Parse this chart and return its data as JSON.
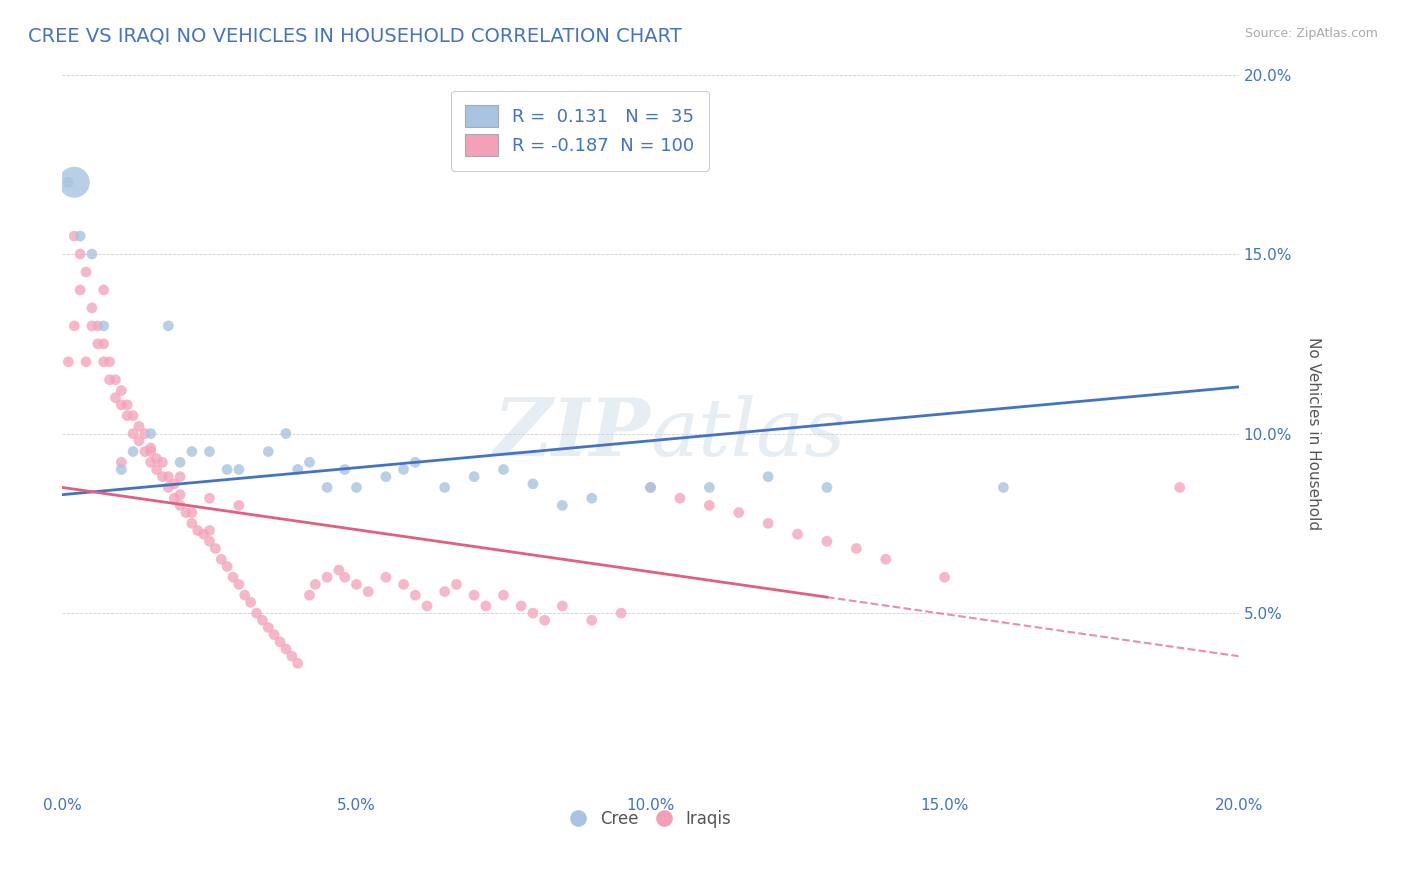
{
  "title": "CREE VS IRAQI NO VEHICLES IN HOUSEHOLD CORRELATION CHART",
  "source": "Source: ZipAtlas.com",
  "ylabel": "No Vehicles in Household",
  "xlim": [
    0.0,
    0.2
  ],
  "ylim": [
    0.0,
    0.2
  ],
  "xtick_labels": [
    "0.0%",
    "5.0%",
    "10.0%",
    "15.0%",
    "20.0%"
  ],
  "xtick_vals": [
    0.0,
    0.05,
    0.1,
    0.15,
    0.2
  ],
  "ytick_labels": [
    "",
    "5.0%",
    "10.0%",
    "15.0%",
    "20.0%"
  ],
  "ytick_vals": [
    0.0,
    0.05,
    0.1,
    0.15,
    0.2
  ],
  "cree_R": 0.131,
  "cree_N": 35,
  "iraqi_R": -0.187,
  "iraqi_N": 100,
  "cree_color": "#a8c4e0",
  "iraqi_color": "#f4a0b8",
  "cree_line_color": "#4472c4",
  "iraqi_line_color": "#e06080",
  "legend_labels": [
    "Cree",
    "Iraqis"
  ],
  "cree_line_x0": 0.0,
  "cree_line_y0": 0.083,
  "cree_line_x1": 0.2,
  "cree_line_y1": 0.113,
  "iraqi_line_x0": 0.0,
  "iraqi_line_y0": 0.085,
  "iraqi_line_x1": 0.2,
  "iraqi_line_y1": 0.038,
  "iraqi_line_solid_end": 0.13,
  "cree_scatter_x": [
    0.001,
    0.003,
    0.005,
    0.007,
    0.01,
    0.012,
    0.015,
    0.018,
    0.02,
    0.022,
    0.025,
    0.028,
    0.03,
    0.035,
    0.038,
    0.04,
    0.042,
    0.045,
    0.048,
    0.05,
    0.055,
    0.058,
    0.06,
    0.065,
    0.07,
    0.075,
    0.08,
    0.085,
    0.09,
    0.1,
    0.11,
    0.12,
    0.13,
    0.16,
    0.002
  ],
  "cree_scatter_y": [
    0.17,
    0.155,
    0.15,
    0.13,
    0.09,
    0.095,
    0.1,
    0.13,
    0.092,
    0.095,
    0.095,
    0.09,
    0.09,
    0.095,
    0.1,
    0.09,
    0.092,
    0.085,
    0.09,
    0.085,
    0.088,
    0.09,
    0.092,
    0.085,
    0.088,
    0.09,
    0.086,
    0.08,
    0.082,
    0.085,
    0.085,
    0.088,
    0.085,
    0.085,
    0.17
  ],
  "cree_scatter_size": [
    60,
    60,
    60,
    60,
    60,
    60,
    60,
    60,
    60,
    60,
    60,
    60,
    60,
    60,
    60,
    60,
    60,
    60,
    60,
    60,
    60,
    60,
    60,
    60,
    60,
    60,
    60,
    60,
    60,
    60,
    60,
    60,
    60,
    60,
    500
  ],
  "iraqi_scatter_x": [
    0.001,
    0.002,
    0.003,
    0.004,
    0.005,
    0.005,
    0.006,
    0.006,
    0.007,
    0.007,
    0.008,
    0.008,
    0.009,
    0.009,
    0.01,
    0.01,
    0.011,
    0.011,
    0.012,
    0.012,
    0.013,
    0.013,
    0.014,
    0.014,
    0.015,
    0.015,
    0.016,
    0.016,
    0.017,
    0.017,
    0.018,
    0.018,
    0.019,
    0.019,
    0.02,
    0.02,
    0.021,
    0.022,
    0.022,
    0.023,
    0.024,
    0.025,
    0.025,
    0.026,
    0.027,
    0.028,
    0.029,
    0.03,
    0.031,
    0.032,
    0.033,
    0.034,
    0.035,
    0.036,
    0.037,
    0.038,
    0.039,
    0.04,
    0.042,
    0.043,
    0.045,
    0.047,
    0.048,
    0.05,
    0.052,
    0.055,
    0.058,
    0.06,
    0.062,
    0.065,
    0.067,
    0.07,
    0.072,
    0.075,
    0.078,
    0.08,
    0.082,
    0.085,
    0.09,
    0.095,
    0.1,
    0.105,
    0.11,
    0.115,
    0.12,
    0.125,
    0.13,
    0.135,
    0.14,
    0.15,
    0.002,
    0.003,
    0.004,
    0.007,
    0.01,
    0.015,
    0.02,
    0.025,
    0.03,
    0.19
  ],
  "iraqi_scatter_y": [
    0.12,
    0.13,
    0.14,
    0.12,
    0.13,
    0.135,
    0.125,
    0.13,
    0.12,
    0.125,
    0.115,
    0.12,
    0.11,
    0.115,
    0.108,
    0.112,
    0.105,
    0.108,
    0.1,
    0.105,
    0.098,
    0.102,
    0.095,
    0.1,
    0.092,
    0.096,
    0.09,
    0.093,
    0.088,
    0.092,
    0.085,
    0.088,
    0.082,
    0.086,
    0.08,
    0.083,
    0.078,
    0.075,
    0.078,
    0.073,
    0.072,
    0.07,
    0.073,
    0.068,
    0.065,
    0.063,
    0.06,
    0.058,
    0.055,
    0.053,
    0.05,
    0.048,
    0.046,
    0.044,
    0.042,
    0.04,
    0.038,
    0.036,
    0.055,
    0.058,
    0.06,
    0.062,
    0.06,
    0.058,
    0.056,
    0.06,
    0.058,
    0.055,
    0.052,
    0.056,
    0.058,
    0.055,
    0.052,
    0.055,
    0.052,
    0.05,
    0.048,
    0.052,
    0.048,
    0.05,
    0.085,
    0.082,
    0.08,
    0.078,
    0.075,
    0.072,
    0.07,
    0.068,
    0.065,
    0.06,
    0.155,
    0.15,
    0.145,
    0.14,
    0.092,
    0.095,
    0.088,
    0.082,
    0.08,
    0.085
  ]
}
